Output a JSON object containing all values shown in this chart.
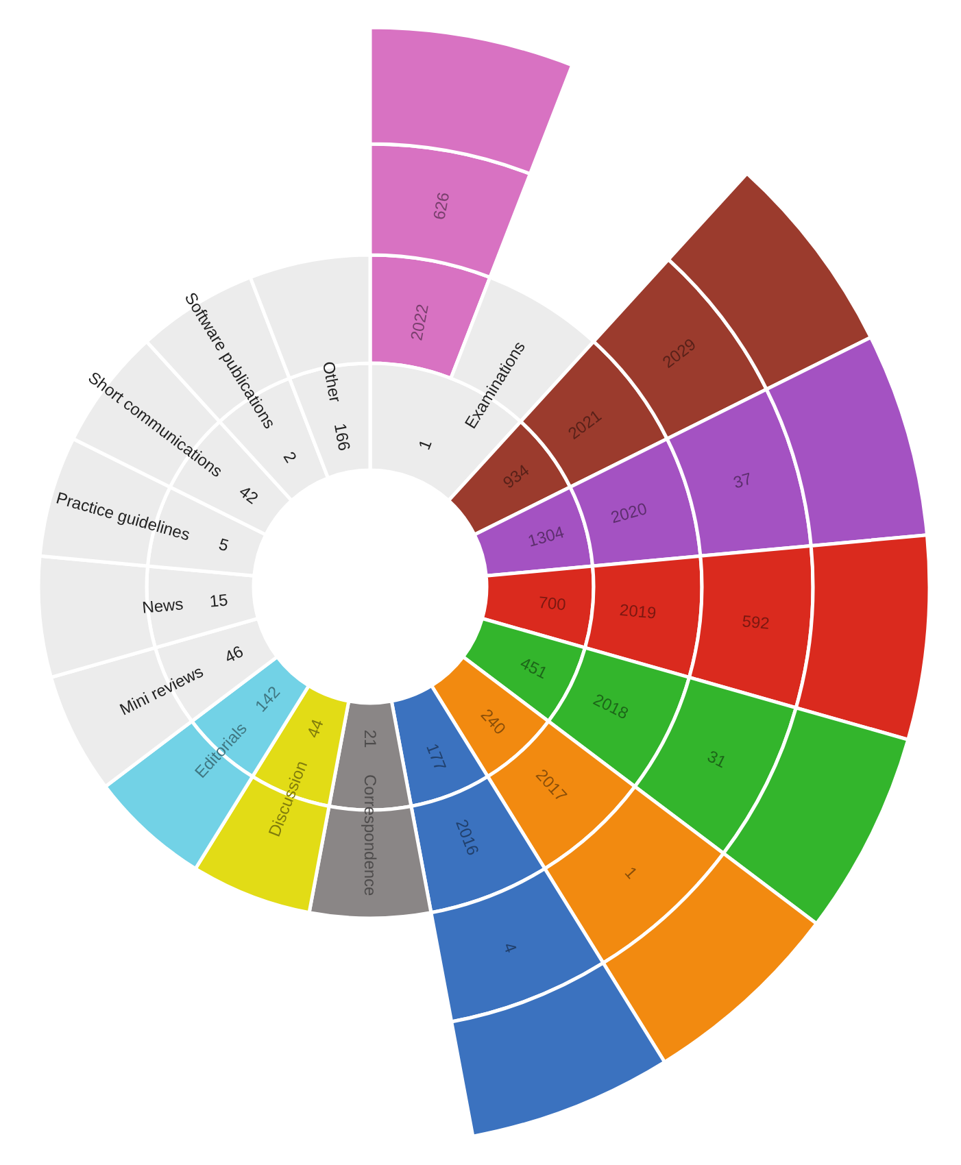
{
  "chart_data": {
    "type": "other",
    "data_labels": true,
    "categories": [
      "2022",
      "Examinations",
      "2021",
      "2020",
      "2019",
      "2018",
      "2017",
      "2016",
      "Correspondence",
      "Discussion",
      "Editorials",
      "Mini reviews",
      "News",
      "Practice guidelines",
      "Short communications",
      "Software publications",
      "Other"
    ],
    "colors": [
      "#d872c2",
      "#ececec",
      "#9b3b2d",
      "#a452c2",
      "#da2a1e",
      "#33b52c",
      "#f28a10",
      "#3b72bf",
      "#8a8686",
      "#e2dc16",
      "#72d2e6",
      "#ececec",
      "#ececec",
      "#ececec",
      "#ececec",
      "#ececec",
      "#ececec"
    ],
    "series": [
      {
        "values": [
          null,
          1,
          934,
          1304,
          700,
          451,
          240,
          177,
          21,
          44,
          142,
          46,
          15,
          5,
          42,
          2,
          166
        ],
        "colors": [
          null,
          "#ececec",
          "#9b3b2d",
          "#a452c2",
          "#da2a1e",
          "#33b52c",
          "#f28a10",
          "#3b72bf",
          "#8a8686",
          "#e2dc16",
          "#72d2e6",
          "#ececec",
          "#ececec",
          "#ececec",
          "#ececec",
          "#ececec",
          "#ececec"
        ]
      },
      {
        "values": [
          626,
          null,
          2029,
          37,
          592,
          31,
          1,
          4,
          null,
          null,
          null,
          null,
          null,
          null,
          null,
          null,
          null
        ],
        "colors": [
          "#d872c2",
          null,
          "#9b3b2d",
          "#a452c2",
          "#da2a1e",
          "#33b52c",
          "#f28a10",
          "#3b72bf",
          null,
          null,
          null,
          null,
          null,
          null,
          null,
          null,
          null
        ]
      }
    ]
  }
}
